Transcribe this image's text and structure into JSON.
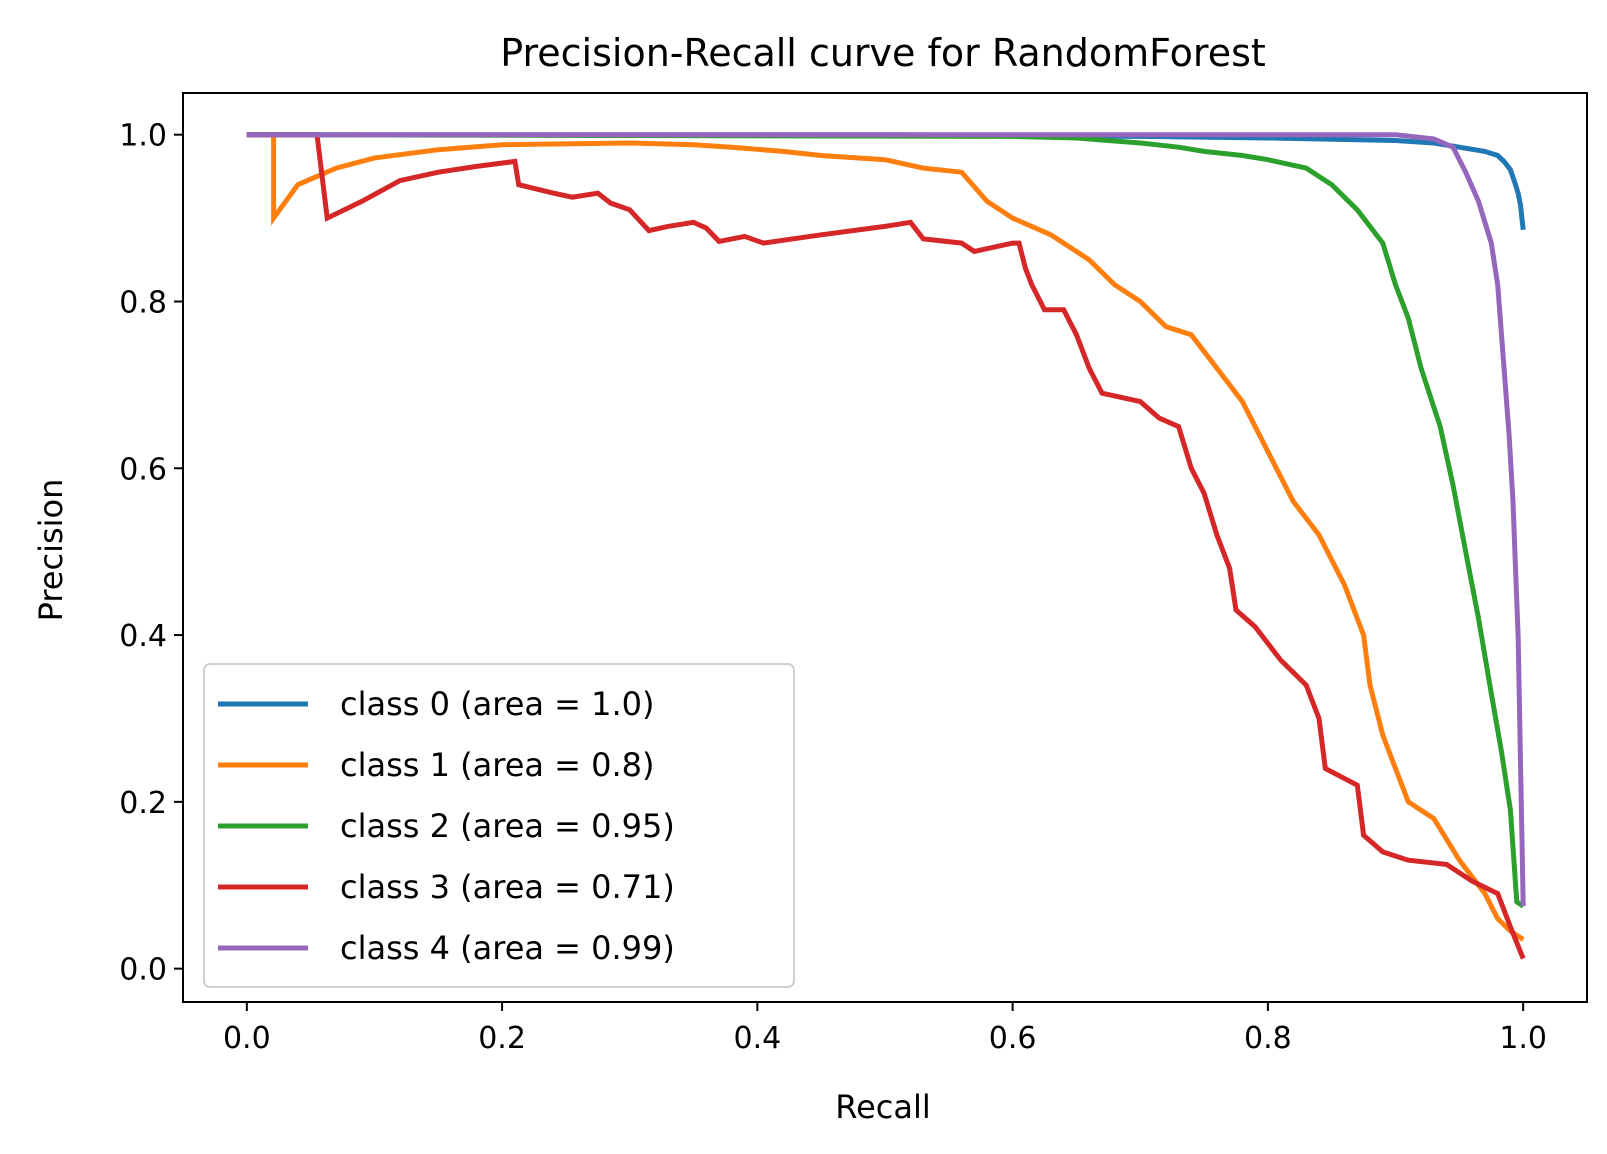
{
  "chart_data": {
    "type": "line",
    "title": "Precision-Recall curve for RandomForest",
    "xlabel": "Recall",
    "ylabel": "Precision",
    "xlim": [
      -0.05,
      1.05
    ],
    "ylim": [
      -0.04,
      1.05
    ],
    "xticks": [
      0.0,
      0.2,
      0.4,
      0.6,
      0.8,
      1.0
    ],
    "xtick_labels": [
      "0.0",
      "0.2",
      "0.4",
      "0.6",
      "0.8",
      "1.0"
    ],
    "yticks": [
      0.0,
      0.2,
      0.4,
      0.6,
      0.8,
      1.0
    ],
    "ytick_labels": [
      "0.0",
      "0.2",
      "0.4",
      "0.6",
      "0.8",
      "1.0"
    ],
    "grid": false,
    "legend_position": "lower-left",
    "series": [
      {
        "name": "class 0 (area = 1.0)",
        "color": "#1f77b4",
        "points": [
          [
            0.0,
            1.0
          ],
          [
            0.5,
            1.0
          ],
          [
            0.7,
            0.998
          ],
          [
            0.8,
            0.996
          ],
          [
            0.9,
            0.993
          ],
          [
            0.93,
            0.99
          ],
          [
            0.95,
            0.985
          ],
          [
            0.97,
            0.98
          ],
          [
            0.98,
            0.975
          ],
          [
            0.985,
            0.968
          ],
          [
            0.99,
            0.958
          ],
          [
            0.993,
            0.945
          ],
          [
            0.996,
            0.93
          ],
          [
            0.998,
            0.915
          ],
          [
            0.999,
            0.9
          ],
          [
            1.0,
            0.886
          ]
        ]
      },
      {
        "name": "class 1 (area = 0.8)",
        "color": "#ff7f0e",
        "points": [
          [
            0.0,
            1.0
          ],
          [
            0.021,
            1.0
          ],
          [
            0.021,
            0.9
          ],
          [
            0.04,
            0.94
          ],
          [
            0.07,
            0.96
          ],
          [
            0.1,
            0.972
          ],
          [
            0.15,
            0.982
          ],
          [
            0.2,
            0.988
          ],
          [
            0.3,
            0.99
          ],
          [
            0.35,
            0.988
          ],
          [
            0.38,
            0.985
          ],
          [
            0.42,
            0.98
          ],
          [
            0.45,
            0.975
          ],
          [
            0.5,
            0.97
          ],
          [
            0.53,
            0.96
          ],
          [
            0.56,
            0.955
          ],
          [
            0.58,
            0.92
          ],
          [
            0.6,
            0.9
          ],
          [
            0.63,
            0.88
          ],
          [
            0.66,
            0.85
          ],
          [
            0.68,
            0.82
          ],
          [
            0.7,
            0.8
          ],
          [
            0.72,
            0.77
          ],
          [
            0.74,
            0.76
          ],
          [
            0.76,
            0.72
          ],
          [
            0.78,
            0.68
          ],
          [
            0.8,
            0.62
          ],
          [
            0.82,
            0.56
          ],
          [
            0.84,
            0.52
          ],
          [
            0.86,
            0.46
          ],
          [
            0.875,
            0.4
          ],
          [
            0.88,
            0.34
          ],
          [
            0.89,
            0.28
          ],
          [
            0.9,
            0.24
          ],
          [
            0.91,
            0.2
          ],
          [
            0.93,
            0.18
          ],
          [
            0.95,
            0.13
          ],
          [
            0.97,
            0.09
          ],
          [
            0.98,
            0.06
          ],
          [
            0.99,
            0.045
          ],
          [
            1.0,
            0.035
          ]
        ]
      },
      {
        "name": "class 2 (area = 0.95)",
        "color": "#2ca02c",
        "points": [
          [
            0.0,
            1.0
          ],
          [
            0.6,
            0.998
          ],
          [
            0.65,
            0.996
          ],
          [
            0.7,
            0.99
          ],
          [
            0.73,
            0.985
          ],
          [
            0.75,
            0.98
          ],
          [
            0.78,
            0.975
          ],
          [
            0.8,
            0.97
          ],
          [
            0.83,
            0.96
          ],
          [
            0.85,
            0.94
          ],
          [
            0.87,
            0.91
          ],
          [
            0.89,
            0.87
          ],
          [
            0.9,
            0.82
          ],
          [
            0.91,
            0.78
          ],
          [
            0.92,
            0.72
          ],
          [
            0.935,
            0.65
          ],
          [
            0.945,
            0.58
          ],
          [
            0.955,
            0.5
          ],
          [
            0.965,
            0.42
          ],
          [
            0.975,
            0.33
          ],
          [
            0.983,
            0.26
          ],
          [
            0.99,
            0.19
          ],
          [
            0.995,
            0.08
          ],
          [
            1.0,
            0.075
          ]
        ]
      },
      {
        "name": "class 3 (area = 0.71)",
        "color": "#d62728",
        "points": [
          [
            0.0,
            1.0
          ],
          [
            0.055,
            1.0
          ],
          [
            0.063,
            0.9
          ],
          [
            0.09,
            0.92
          ],
          [
            0.12,
            0.945
          ],
          [
            0.15,
            0.955
          ],
          [
            0.18,
            0.962
          ],
          [
            0.21,
            0.968
          ],
          [
            0.213,
            0.94
          ],
          [
            0.24,
            0.93
          ],
          [
            0.255,
            0.925
          ],
          [
            0.275,
            0.93
          ],
          [
            0.285,
            0.918
          ],
          [
            0.3,
            0.91
          ],
          [
            0.315,
            0.885
          ],
          [
            0.33,
            0.89
          ],
          [
            0.35,
            0.895
          ],
          [
            0.36,
            0.888
          ],
          [
            0.37,
            0.872
          ],
          [
            0.39,
            0.878
          ],
          [
            0.405,
            0.87
          ],
          [
            0.45,
            0.88
          ],
          [
            0.5,
            0.89
          ],
          [
            0.52,
            0.895
          ],
          [
            0.53,
            0.875
          ],
          [
            0.56,
            0.87
          ],
          [
            0.57,
            0.86
          ],
          [
            0.6,
            0.87
          ],
          [
            0.605,
            0.87
          ],
          [
            0.61,
            0.84
          ],
          [
            0.615,
            0.82
          ],
          [
            0.625,
            0.79
          ],
          [
            0.64,
            0.79
          ],
          [
            0.65,
            0.76
          ],
          [
            0.66,
            0.72
          ],
          [
            0.67,
            0.69
          ],
          [
            0.7,
            0.68
          ],
          [
            0.715,
            0.66
          ],
          [
            0.73,
            0.65
          ],
          [
            0.74,
            0.6
          ],
          [
            0.75,
            0.57
          ],
          [
            0.76,
            0.52
          ],
          [
            0.77,
            0.48
          ],
          [
            0.775,
            0.43
          ],
          [
            0.79,
            0.41
          ],
          [
            0.8,
            0.39
          ],
          [
            0.81,
            0.37
          ],
          [
            0.83,
            0.34
          ],
          [
            0.84,
            0.3
          ],
          [
            0.845,
            0.24
          ],
          [
            0.87,
            0.22
          ],
          [
            0.875,
            0.16
          ],
          [
            0.89,
            0.14
          ],
          [
            0.91,
            0.13
          ],
          [
            0.94,
            0.125
          ],
          [
            0.96,
            0.105
          ],
          [
            0.98,
            0.09
          ],
          [
            0.99,
            0.05
          ],
          [
            1.0,
            0.012
          ]
        ]
      },
      {
        "name": "class 4 (area = 0.99)",
        "color": "#9467bd",
        "points": [
          [
            0.0,
            1.0
          ],
          [
            0.9,
            1.0
          ],
          [
            0.93,
            0.995
          ],
          [
            0.945,
            0.985
          ],
          [
            0.955,
            0.955
          ],
          [
            0.965,
            0.92
          ],
          [
            0.975,
            0.87
          ],
          [
            0.98,
            0.82
          ],
          [
            0.983,
            0.76
          ],
          [
            0.986,
            0.7
          ],
          [
            0.989,
            0.64
          ],
          [
            0.992,
            0.56
          ],
          [
            0.994,
            0.48
          ],
          [
            0.996,
            0.4
          ],
          [
            0.997,
            0.32
          ],
          [
            0.998,
            0.24
          ],
          [
            0.999,
            0.16
          ],
          [
            1.0,
            0.075
          ]
        ]
      }
    ]
  }
}
